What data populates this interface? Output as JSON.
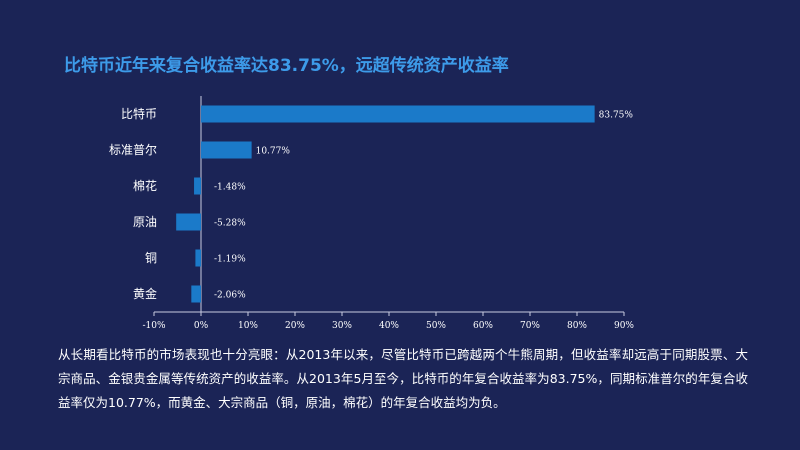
{
  "title": "比特币近年来复合收益率达83.75%，远超传统资产收益率",
  "chart_data": {
    "type": "bar",
    "orientation": "horizontal",
    "categories": [
      "比特币",
      "标准普尔",
      "棉花",
      "原油",
      "铜",
      "黄金"
    ],
    "values": [
      83.75,
      10.77,
      -1.48,
      -5.28,
      -1.19,
      -2.06
    ],
    "data_labels": [
      "83.75%",
      "10.77%",
      "-1.48%",
      "-5.28%",
      "-1.19%",
      "-2.06%"
    ],
    "x_ticks": [
      "-10%",
      "0%",
      "10%",
      "20%",
      "30%",
      "40%",
      "50%",
      "60%",
      "70%",
      "80%",
      "90%"
    ],
    "xlim": [
      -10,
      90
    ],
    "grid": false,
    "bar_color": "#1b7ac9"
  },
  "body_text": "从长期看比特币的市场表现也十分亮眼：从2013年以来，尽管比特币已跨越两个牛熊周期，但收益率却远高于同期股票、大宗商品、金银贵金属等传统资产的收益率。从2013年5月至今，比特币的年复合收益率为83.75%，同期标准普尔的年复合收益率仅为10.77%，而黄金、大宗商品（铜，原油，棉花）的年复合收益均为负。",
  "colors": {
    "background": "#1b2456",
    "title": "#3d9be9",
    "axis": "#c8cbe0"
  }
}
